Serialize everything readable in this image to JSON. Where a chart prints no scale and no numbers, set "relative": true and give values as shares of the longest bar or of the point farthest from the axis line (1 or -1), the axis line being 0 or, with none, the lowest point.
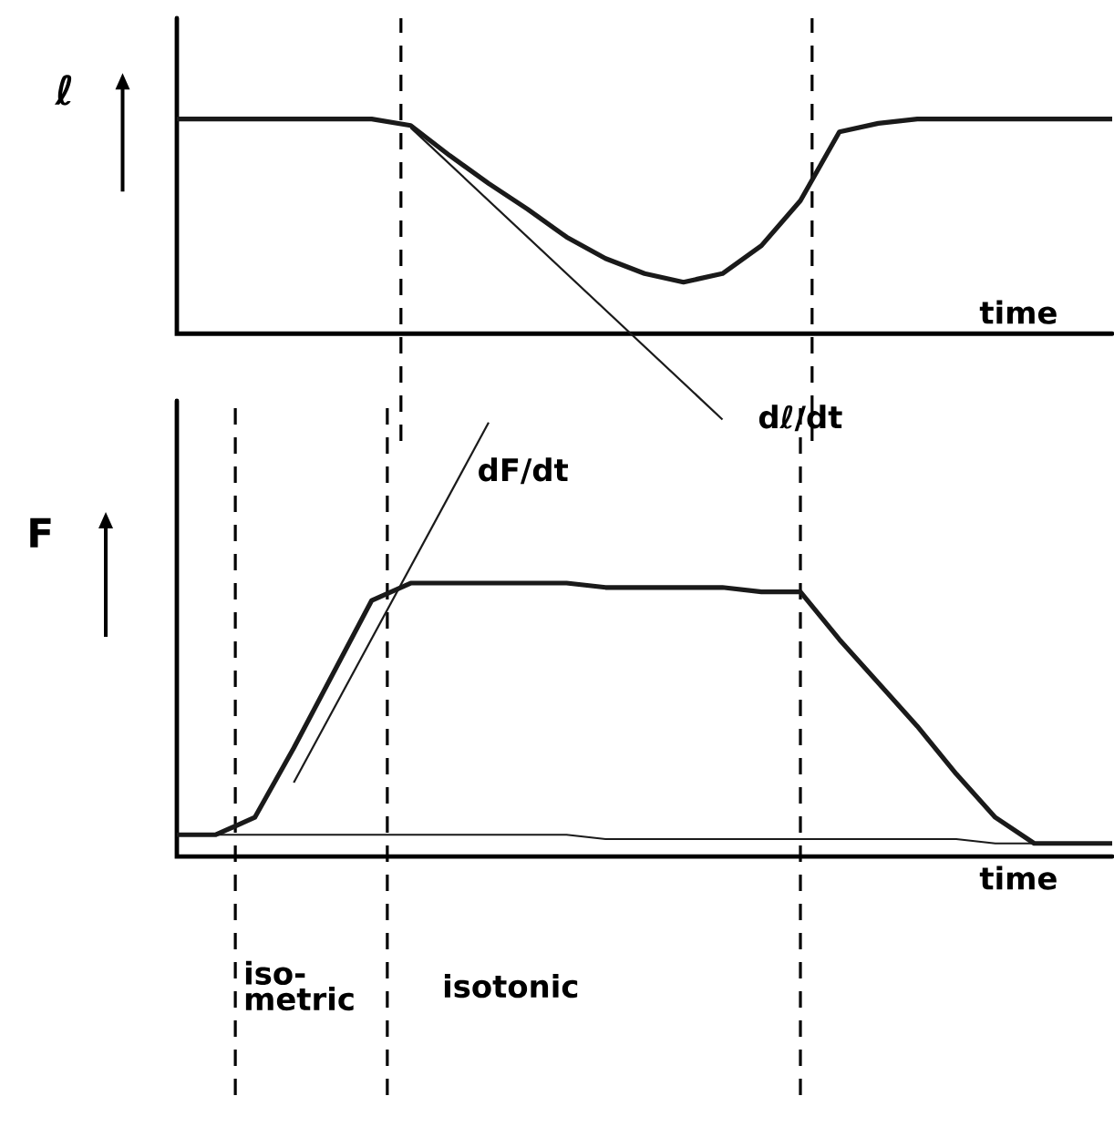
{
  "chart_data": [
    {
      "type": "line",
      "relative": true,
      "ylabel": "ℓ",
      "xlabel": "time",
      "categories": [
        null,
        null,
        null,
        null,
        null,
        null,
        null,
        null,
        null,
        null,
        null,
        null,
        null,
        null,
        null,
        null,
        null,
        null,
        null,
        null,
        null,
        null,
        null,
        null,
        null
      ],
      "series": [
        {
          "color": "#1a1a1a",
          "values": [
            1,
            1,
            1,
            1,
            1,
            1,
            0.97,
            0.83,
            0.7,
            0.58,
            0.45,
            0.35,
            0.28,
            0.24,
            0.28,
            0.41,
            0.62,
            0.94,
            0.98,
            1,
            1,
            1,
            1,
            1,
            1
          ]
        },
        {
          "color": "#1a1a1a",
          "values": [
            null,
            null,
            null,
            null,
            null,
            null,
            0.96,
            null,
            null,
            null,
            null,
            null,
            null,
            null,
            -0.4,
            null,
            null,
            null,
            null,
            null,
            null,
            null,
            null,
            null,
            null
          ]
        }
      ],
      "annotations": [
        "dℓ/dt"
      ]
    },
    {
      "type": "line",
      "relative": true,
      "ylabel": "F",
      "xlabel": "time",
      "categories": [
        null,
        null,
        null,
        null,
        null,
        null,
        null,
        null,
        null,
        null,
        null,
        null,
        null,
        null,
        null,
        null,
        null,
        null,
        null,
        null,
        null,
        null,
        null,
        null,
        null
      ],
      "series": [
        {
          "color": "#1a1a1a",
          "values": [
            0.05,
            0.05,
            0.09,
            0.25,
            0.42,
            0.59,
            0.63,
            0.63,
            0.63,
            0.63,
            0.63,
            0.62,
            0.62,
            0.62,
            0.62,
            0.61,
            0.61,
            0.5,
            0.4,
            0.3,
            0.19,
            0.09,
            0.03,
            0.03,
            0.03
          ]
        },
        {
          "color": "#1a1a1a",
          "values": [
            0.05,
            0.05,
            0.05,
            0.05,
            0.05,
            0.05,
            0.05,
            0.05,
            0.05,
            0.05,
            0.05,
            0.04,
            0.04,
            0.04,
            0.04,
            0.04,
            0.04,
            0.04,
            0.04,
            0.04,
            0.04,
            0.03,
            0.03,
            0.03,
            0.03
          ]
        },
        {
          "color": "#1a1a1a",
          "values": [
            null,
            null,
            null,
            0.17,
            null,
            null,
            null,
            null,
            1,
            null,
            null,
            null,
            null,
            null,
            null,
            null,
            null,
            null,
            null,
            null,
            null,
            null,
            null,
            null,
            null
          ]
        }
      ],
      "annotations": [
        "dF/dt",
        "iso-metric",
        "isotonic"
      ]
    }
  ]
}
